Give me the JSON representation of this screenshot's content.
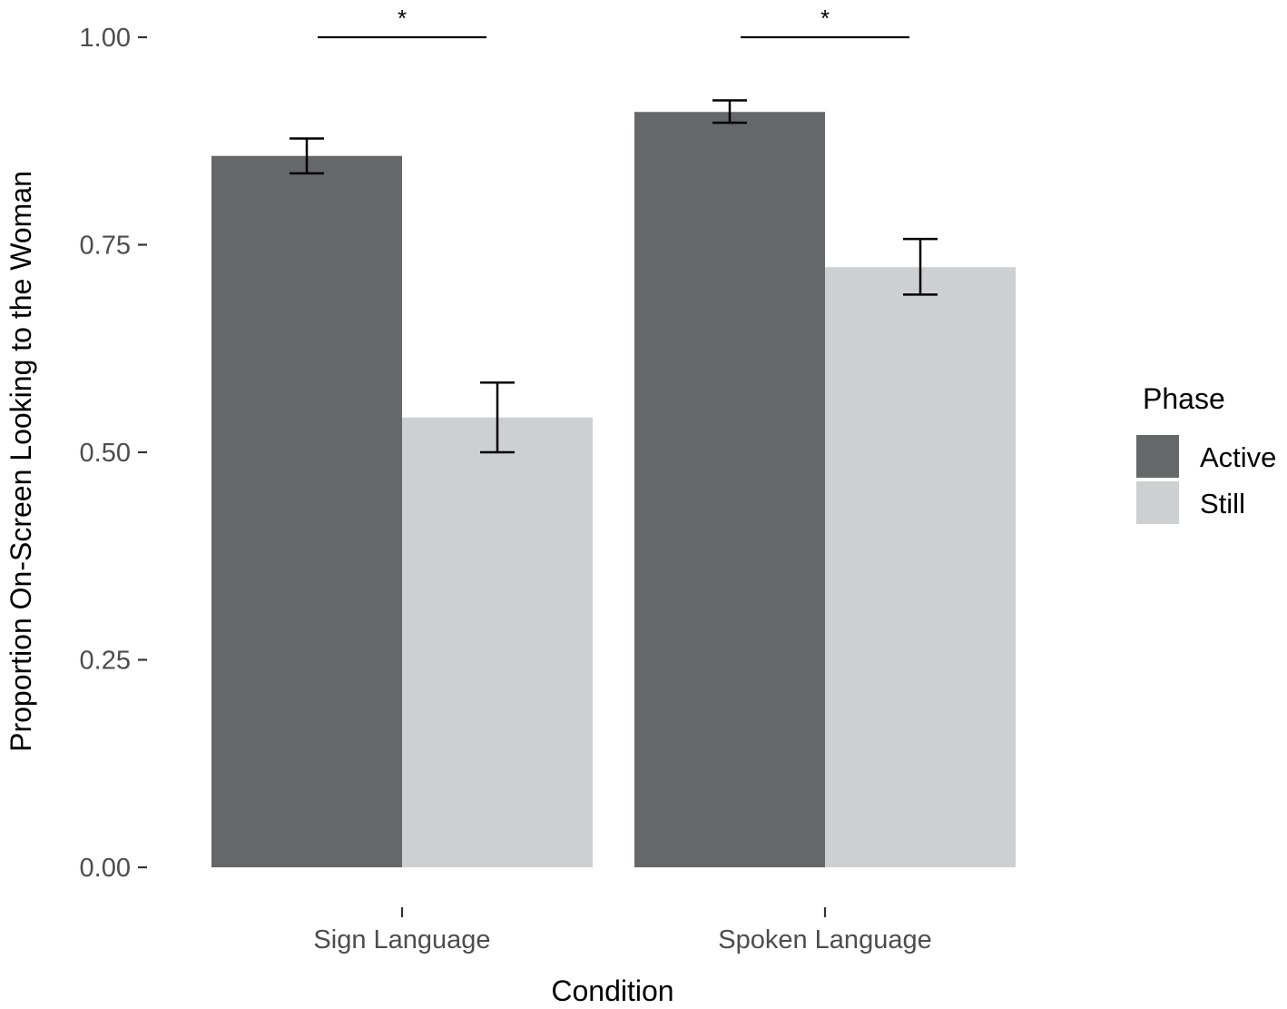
{
  "chart_data": {
    "type": "bar",
    "xlabel": "Condition",
    "ylabel": "Proportion On-Screen Looking to the Woman",
    "ylim": [
      0,
      1.05
    ],
    "yticks": [
      0.0,
      0.25,
      0.5,
      0.75,
      1.0
    ],
    "ytick_labels": [
      "0.00",
      "0.25",
      "0.50",
      "0.75",
      "1.00"
    ],
    "categories": [
      "Sign Language",
      "Spoken Language"
    ],
    "series": [
      {
        "name": "Active",
        "color": "#666769",
        "values": [
          0.857,
          0.91
        ],
        "error_low": [
          0.836,
          0.897
        ],
        "error_high": [
          0.878,
          0.924
        ]
      },
      {
        "name": "Still",
        "color": "#cecfd1",
        "values": [
          0.542,
          0.723
        ],
        "error_low": [
          0.5,
          0.69
        ],
        "error_high": [
          0.584,
          0.757
        ]
      }
    ],
    "legend": {
      "title": "Phase",
      "position": "right"
    },
    "significance": [
      {
        "category": "Sign Language",
        "y": 1.0,
        "label": "*"
      },
      {
        "category": "Spoken Language",
        "y": 1.0,
        "label": "*"
      }
    ],
    "grid": false
  }
}
